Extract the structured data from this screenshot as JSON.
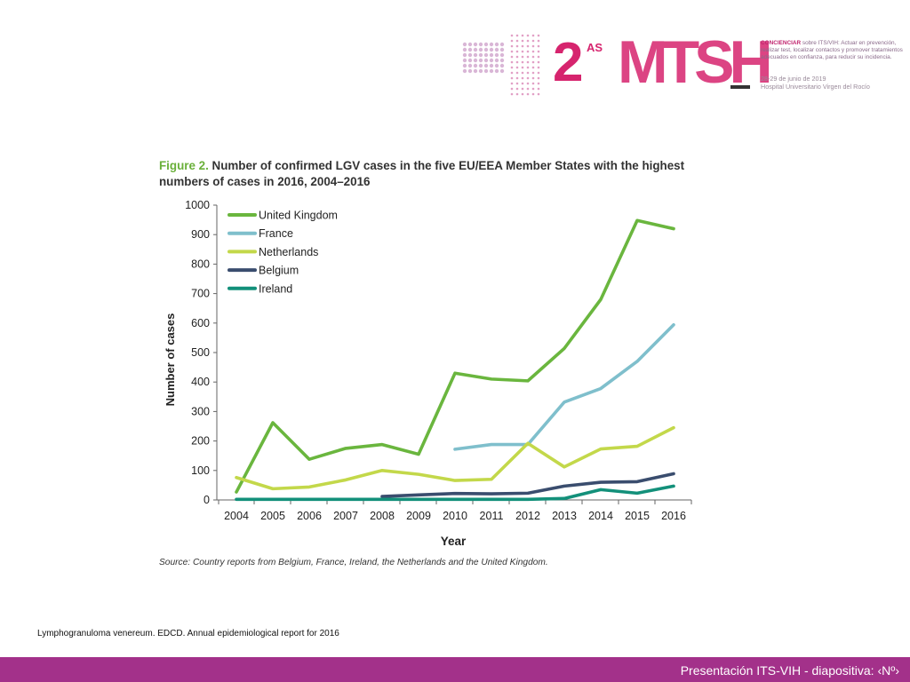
{
  "header": {
    "logo_number": "2",
    "logo_superscript": "AS",
    "logo_word": "MTSH",
    "tagline_bold": "CONCIENCIAR",
    "tagline_rest": "sobre ITS/VIH: Actuar en prevención, realizar test, localizar contactos y promover tratamientos adecuados en confianza, para reducir su incidencia.",
    "date_line": "28-29 de junio de 2019",
    "venue_line": "Hospital Universitario Virgen del Rocío",
    "colors": {
      "magenta": "#d6246e",
      "purple": "#8e3a8e"
    }
  },
  "figure": {
    "label": "Figure 2.",
    "title": "Number of confirmed LGV cases in the five EU/EEA Member States with the highest numbers of cases in 2016, 2004–2016",
    "source": "Source: Country reports from Belgium, France, Ireland, the Netherlands and the United Kingdom."
  },
  "chart_data": {
    "type": "line",
    "title": "Number of confirmed LGV cases in the five EU/EEA Member States with the highest numbers of cases in 2016, 2004–2016",
    "xlabel": "Year",
    "ylabel": "Number of cases",
    "ylim": [
      0,
      1000
    ],
    "yticks": [
      0,
      100,
      200,
      300,
      400,
      500,
      600,
      700,
      800,
      900,
      1000
    ],
    "categories": [
      "2004",
      "2005",
      "2006",
      "2007",
      "2008",
      "2009",
      "2010",
      "2011",
      "2012",
      "2013",
      "2014",
      "2015",
      "2016"
    ],
    "legend_position": "top-left",
    "grid": false,
    "series": [
      {
        "name": "United Kingdom",
        "color": "#6ab63e",
        "values": [
          27,
          262,
          138,
          175,
          188,
          155,
          430,
          410,
          404,
          514,
          680,
          948,
          920
        ]
      },
      {
        "name": "France",
        "color": "#7fbfcc",
        "values": [
          null,
          null,
          null,
          null,
          null,
          null,
          172,
          188,
          188,
          332,
          378,
          470,
          594
        ]
      },
      {
        "name": "Netherlands",
        "color": "#c3d84a",
        "values": [
          76,
          38,
          44,
          68,
          100,
          87,
          66,
          70,
          192,
          112,
          173,
          182,
          245
        ]
      },
      {
        "name": "Belgium",
        "color": "#3a4d6e",
        "values": [
          null,
          null,
          null,
          null,
          12,
          17,
          22,
          21,
          23,
          47,
          60,
          62,
          89
        ]
      },
      {
        "name": "Ireland",
        "color": "#13907a",
        "values": [
          2,
          2,
          2,
          2,
          2,
          2,
          2,
          2,
          2,
          5,
          35,
          23,
          47
        ]
      }
    ]
  },
  "caption": "Lymphogranuloma venereum. EDCD. Annual epidemiological report for 2016",
  "footer": {
    "text": "Presentación ITS-VIH  - diapositiva:  ‹Nº›",
    "color": "#a3318a"
  }
}
